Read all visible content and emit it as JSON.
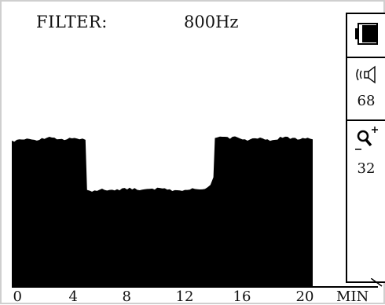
{
  "header": {
    "filter_label": "FILTER:",
    "filter_value": "800Hz"
  },
  "side_panel": {
    "battery_icon": "battery-icon",
    "volume_icon": "speaker-volume-icon",
    "volume_value": "68",
    "zoom_icon": "zoom-in-icon",
    "zoom_value": "32"
  },
  "chart_data": {
    "type": "area",
    "x_axis": {
      "ticks": [
        "0",
        "4",
        "8",
        "12",
        "16",
        "20"
      ],
      "unit": "MIN",
      "range": [
        0,
        20
      ]
    },
    "y_range": [
      0,
      1
    ],
    "x": [
      0,
      0.5,
      1,
      1.5,
      2,
      2.5,
      3,
      3.5,
      4,
      4.5,
      4.9,
      5.0,
      5.5,
      6,
      6.5,
      7,
      7.5,
      8,
      8.5,
      9,
      9.5,
      10,
      10.5,
      11,
      11.5,
      12,
      12.5,
      13,
      13.2,
      13.4,
      13.5,
      14,
      14.5,
      15,
      15.5,
      16,
      16.5,
      17,
      17.5,
      18,
      18.5,
      19,
      19.5,
      20
    ],
    "y": [
      0.575,
      0.58,
      0.583,
      0.578,
      0.585,
      0.59,
      0.58,
      0.577,
      0.584,
      0.58,
      0.578,
      0.38,
      0.378,
      0.385,
      0.38,
      0.383,
      0.388,
      0.382,
      0.379,
      0.384,
      0.381,
      0.386,
      0.383,
      0.379,
      0.38,
      0.387,
      0.382,
      0.39,
      0.4,
      0.43,
      0.585,
      0.59,
      0.582,
      0.588,
      0.58,
      0.584,
      0.587,
      0.58,
      0.578,
      0.586,
      0.582,
      0.579,
      0.583,
      0.58
    ],
    "fill_color": "#000000"
  }
}
